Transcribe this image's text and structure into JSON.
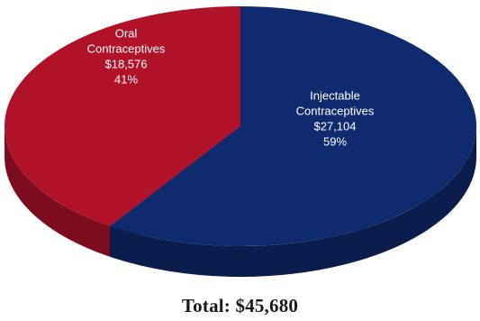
{
  "chart_data": {
    "type": "pie",
    "title": "",
    "slices": [
      {
        "label_lines": [
          "Injectable",
          "Contraceptives"
        ],
        "value": 27104,
        "value_text": "$27,104",
        "percent_text": "59%",
        "color": "#0f2a6e",
        "side_color": "#0a1d4c"
      },
      {
        "label_lines": [
          "Oral",
          "Contraceptives"
        ],
        "value": 18576,
        "value_text": "$18,576",
        "percent_text": "41%",
        "color": "#b0122a",
        "side_color": "#7d0c1e"
      }
    ],
    "total_text": "Total: $45,680"
  }
}
